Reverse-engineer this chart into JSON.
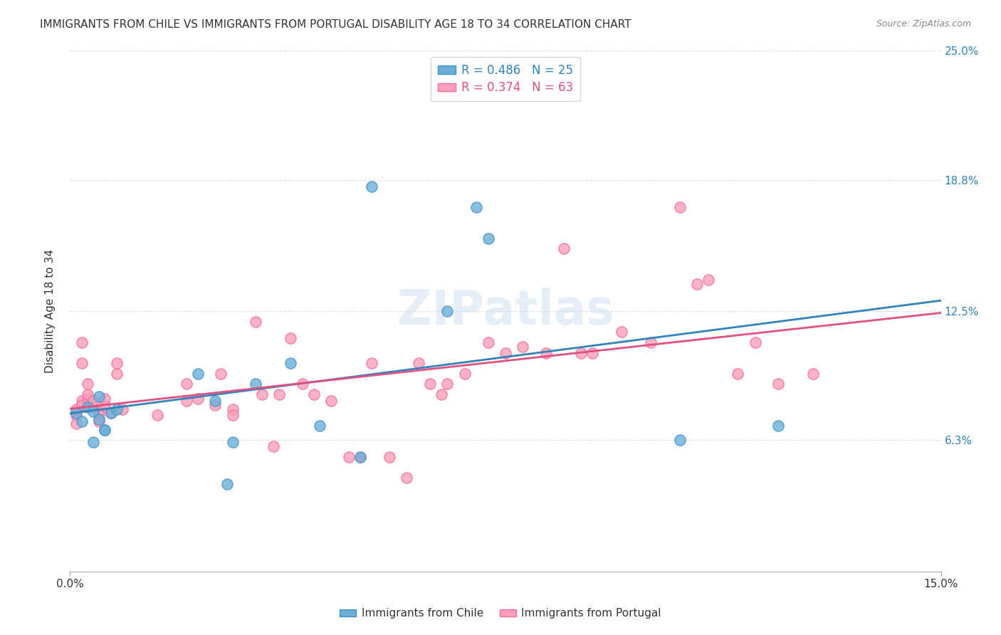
{
  "title": "IMMIGRANTS FROM CHILE VS IMMIGRANTS FROM PORTUGAL DISABILITY AGE 18 TO 34 CORRELATION CHART",
  "source": "Source: ZipAtlas.com",
  "xlabel_bottom": "",
  "ylabel": "Disability Age 18 to 34",
  "xmin": 0.0,
  "xmax": 0.15,
  "ymin": 0.0,
  "ymax": 0.25,
  "xtick_labels": [
    "0.0%",
    "15.0%"
  ],
  "ytick_labels_right": [
    "25.0%",
    "18.8%",
    "12.5%",
    "6.3%"
  ],
  "ytick_values_right": [
    0.25,
    0.188,
    0.125,
    0.063
  ],
  "legend_entries": [
    {
      "label": "R = 0.486   N = 25",
      "color": "#a8c4e0"
    },
    {
      "label": "R = 0.374   N = 63",
      "color": "#f0a0b8"
    }
  ],
  "chile_color": "#6baed6",
  "chile_edge": "#4292c6",
  "portugal_color": "#fa9fb5",
  "portugal_edge": "#f768a1",
  "chile_line_color": "#3182bd",
  "portugal_line_color": "#e05080",
  "watermark": "ZIPatlas",
  "chile_points_x": [
    0.001,
    0.002,
    0.003,
    0.004,
    0.004,
    0.005,
    0.005,
    0.006,
    0.006,
    0.007,
    0.008,
    0.022,
    0.025,
    0.027,
    0.028,
    0.032,
    0.038,
    0.043,
    0.05,
    0.052,
    0.065,
    0.07,
    0.072,
    0.105,
    0.122
  ],
  "chile_points_y": [
    0.076,
    0.072,
    0.079,
    0.077,
    0.062,
    0.073,
    0.084,
    0.068,
    0.068,
    0.076,
    0.078,
    0.095,
    0.082,
    0.042,
    0.062,
    0.09,
    0.1,
    0.07,
    0.055,
    0.185,
    0.125,
    0.175,
    0.16,
    0.063,
    0.07
  ],
  "portugal_points_x": [
    0.001,
    0.001,
    0.001,
    0.002,
    0.002,
    0.002,
    0.002,
    0.003,
    0.003,
    0.003,
    0.004,
    0.004,
    0.005,
    0.005,
    0.005,
    0.006,
    0.006,
    0.007,
    0.008,
    0.008,
    0.009,
    0.015,
    0.02,
    0.02,
    0.022,
    0.025,
    0.026,
    0.028,
    0.028,
    0.032,
    0.033,
    0.035,
    0.036,
    0.038,
    0.04,
    0.042,
    0.045,
    0.048,
    0.05,
    0.052,
    0.055,
    0.058,
    0.06,
    0.062,
    0.064,
    0.065,
    0.068,
    0.072,
    0.075,
    0.078,
    0.082,
    0.085,
    0.088,
    0.09,
    0.095,
    0.1,
    0.105,
    0.108,
    0.11,
    0.115,
    0.118,
    0.122,
    0.128
  ],
  "portugal_points_y": [
    0.075,
    0.078,
    0.071,
    0.082,
    0.1,
    0.08,
    0.11,
    0.083,
    0.085,
    0.09,
    0.079,
    0.082,
    0.077,
    0.075,
    0.072,
    0.08,
    0.083,
    0.076,
    0.095,
    0.1,
    0.078,
    0.075,
    0.082,
    0.09,
    0.083,
    0.08,
    0.095,
    0.078,
    0.075,
    0.12,
    0.085,
    0.06,
    0.085,
    0.112,
    0.09,
    0.085,
    0.082,
    0.055,
    0.055,
    0.1,
    0.055,
    0.045,
    0.1,
    0.09,
    0.085,
    0.09,
    0.095,
    0.11,
    0.105,
    0.108,
    0.105,
    0.155,
    0.105,
    0.105,
    0.115,
    0.11,
    0.175,
    0.138,
    0.14,
    0.095,
    0.11,
    0.09,
    0.095
  ]
}
